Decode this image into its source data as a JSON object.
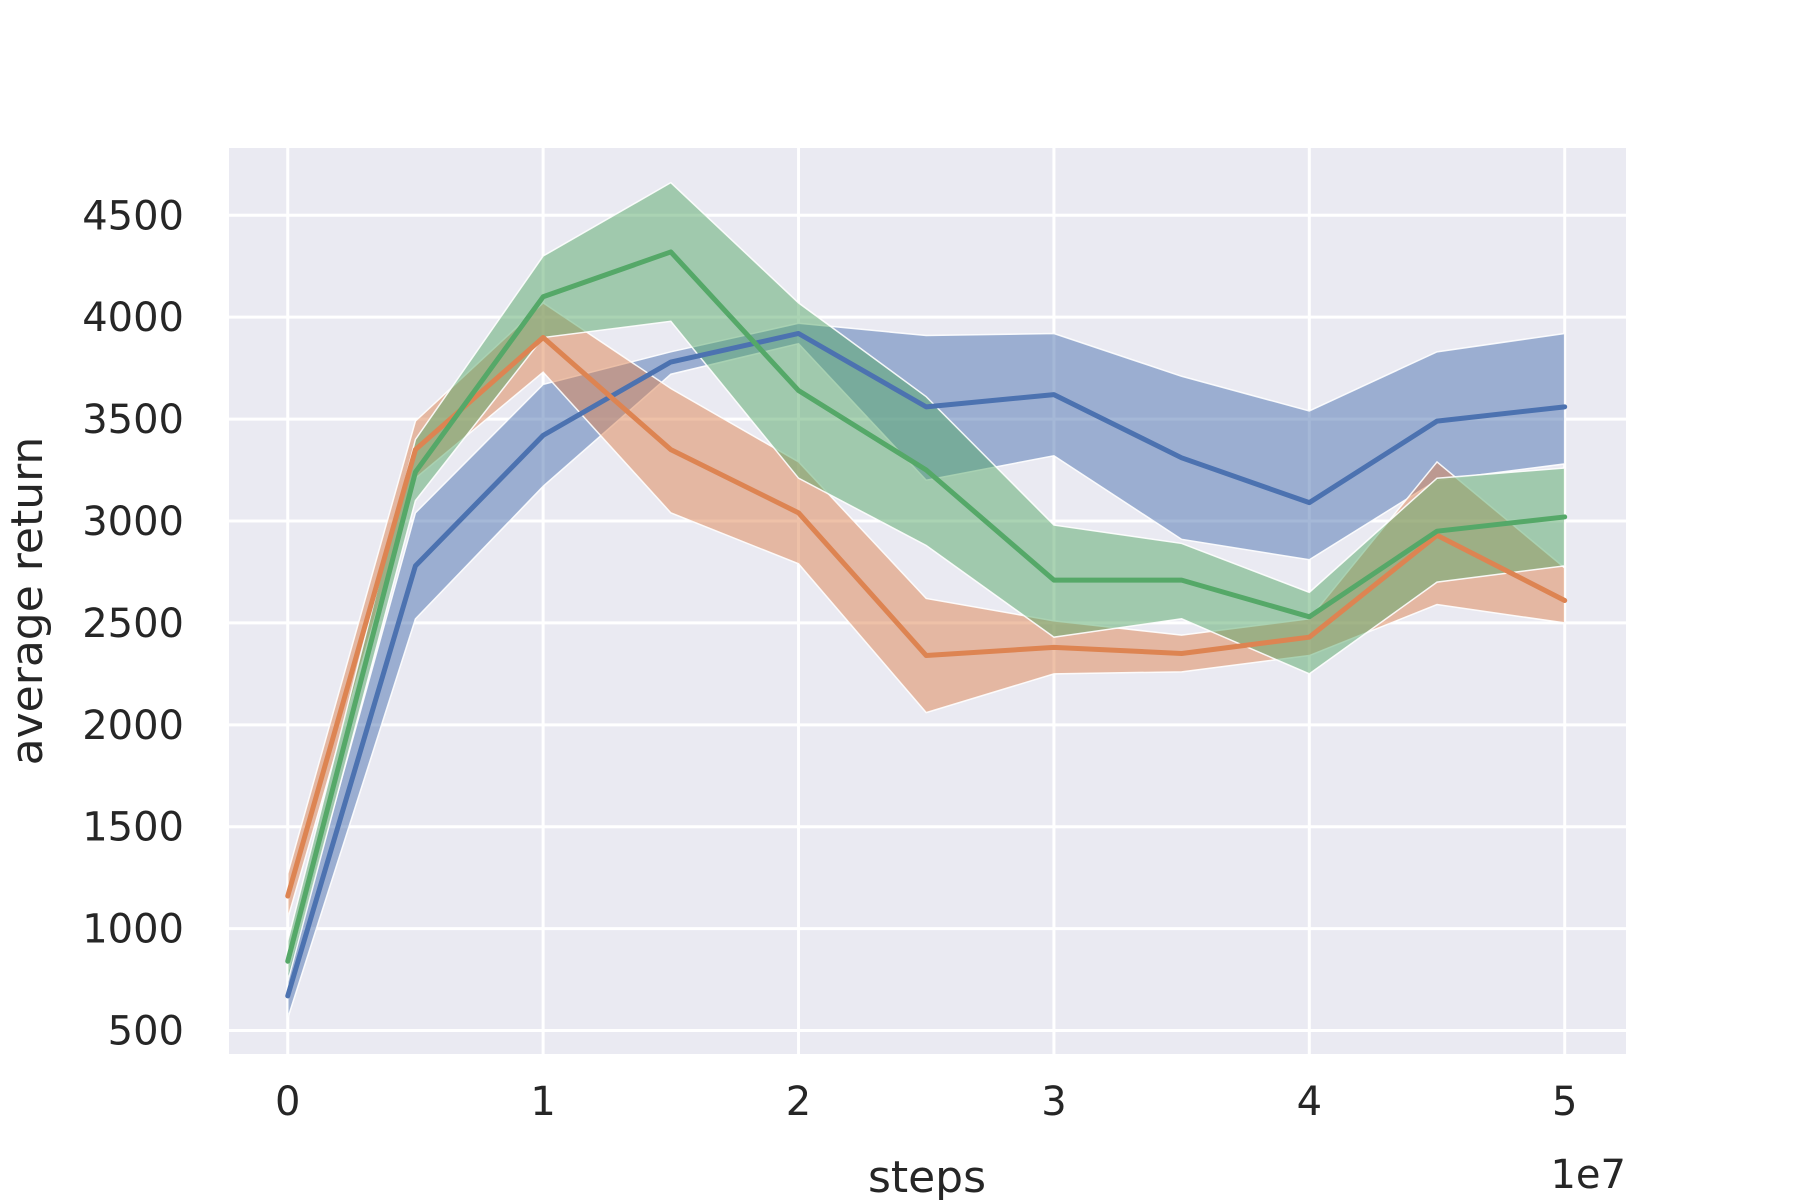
{
  "chart_data": {
    "type": "line",
    "xlabel": "steps",
    "ylabel": "average return",
    "x_offset_label": "1e7",
    "x_ticks": [
      0,
      1,
      2,
      3,
      4,
      5
    ],
    "x_tick_labels": [
      "0",
      "1",
      "2",
      "3",
      "4",
      "5"
    ],
    "y_ticks": [
      500,
      1000,
      1500,
      2000,
      2500,
      3000,
      3500,
      4000,
      4500
    ],
    "y_tick_labels": [
      "500",
      "1000",
      "1500",
      "2000",
      "2500",
      "3000",
      "3500",
      "4000",
      "4500"
    ],
    "xlim": [
      -0.23,
      5.24
    ],
    "ylim": [
      385,
      4830
    ],
    "grid": true,
    "x": [
      0,
      0.5,
      1,
      1.5,
      2,
      2.5,
      3,
      3.5,
      4,
      4.5,
      5
    ],
    "series": [
      {
        "color": "#4c72b0",
        "values": [
          670,
          2780,
          3420,
          3780,
          3920,
          3560,
          3620,
          3310,
          3090,
          3490,
          3560
        ],
        "lower": [
          560,
          2520,
          3170,
          3720,
          3870,
          3200,
          3320,
          2910,
          2810,
          3200,
          3280
        ],
        "upper": [
          780,
          3040,
          3670,
          3830,
          3970,
          3910,
          3920,
          3710,
          3540,
          3830,
          3920
        ]
      },
      {
        "color": "#dd8452",
        "values": [
          1160,
          3350,
          3900,
          3350,
          3040,
          2340,
          2380,
          2350,
          2430,
          2930,
          2610
        ],
        "lower": [
          1050,
          3210,
          3730,
          3040,
          2790,
          2060,
          2250,
          2260,
          2340,
          2590,
          2500
        ],
        "upper": [
          1270,
          3490,
          4070,
          3650,
          3290,
          2620,
          2510,
          2440,
          2520,
          3290,
          2770
        ]
      },
      {
        "color": "#55a868",
        "values": [
          840,
          3240,
          4100,
          4320,
          3640,
          3250,
          2710,
          2710,
          2530,
          2950,
          3020
        ],
        "lower": [
          740,
          3100,
          3900,
          3980,
          3210,
          2880,
          2430,
          2520,
          2250,
          2700,
          2780
        ],
        "upper": [
          940,
          3400,
          4300,
          4660,
          4070,
          3610,
          2980,
          2890,
          2650,
          3210,
          3260
        ]
      }
    ]
  }
}
